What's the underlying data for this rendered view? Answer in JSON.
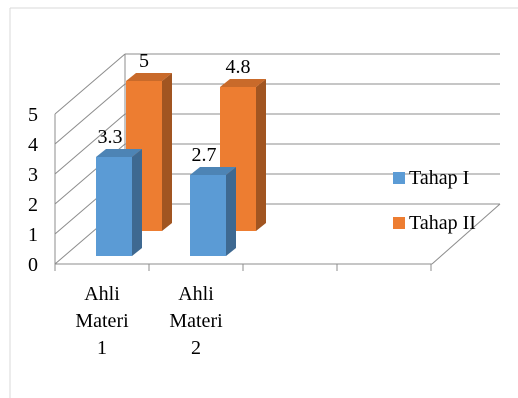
{
  "chart_data": {
    "type": "bar",
    "style": "3d-clustered-column",
    "categories": [
      [
        "Ahli",
        "Materi",
        "1"
      ],
      [
        "Ahli",
        "Materi",
        "2"
      ]
    ],
    "series": [
      {
        "name": "Tahap I",
        "values": [
          3.3,
          2.7
        ],
        "labels": [
          "3.3",
          "2.7"
        ],
        "color": "#5B9BD5"
      },
      {
        "name": "Tahap II",
        "values": [
          5,
          4.8
        ],
        "labels": [
          "5",
          "4.8"
        ],
        "color": "#ED7D31"
      }
    ],
    "yticks": [
      "0",
      "1",
      "2",
      "3",
      "4",
      "5"
    ],
    "ylim": [
      0,
      5
    ],
    "grid": true,
    "legend_position": "right"
  }
}
